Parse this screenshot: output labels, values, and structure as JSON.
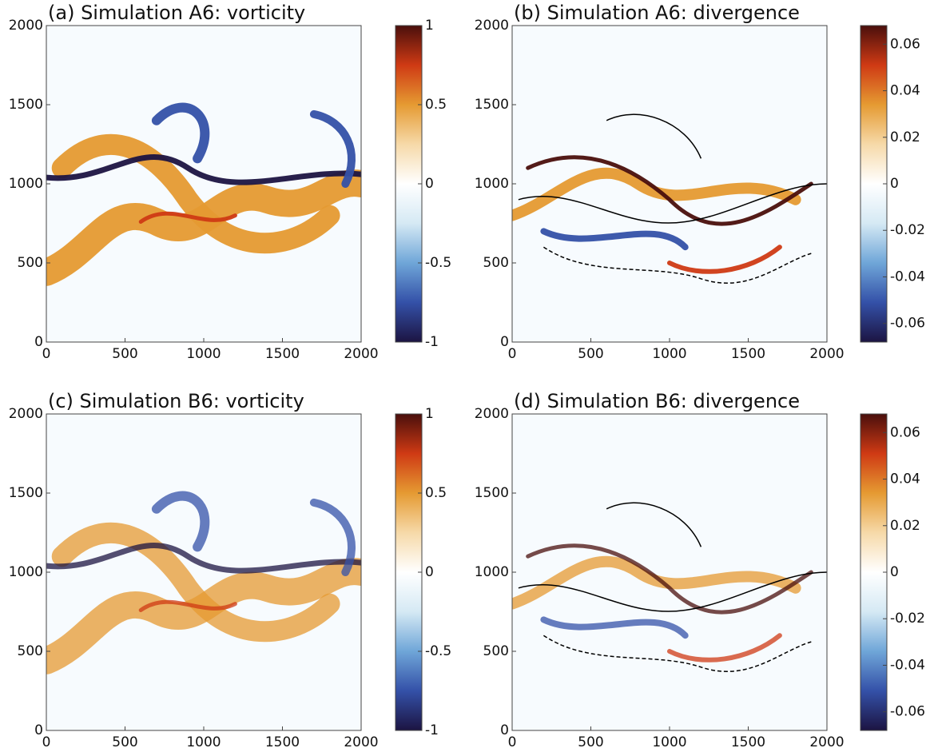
{
  "chart_data": [
    {
      "type": "heatmap",
      "title": "(a) Simulation A6: vorticity",
      "xlim": [
        0,
        2000
      ],
      "ylim": [
        0,
        2000
      ],
      "xticks": [
        0,
        500,
        1000,
        1500,
        2000
      ],
      "yticks": [
        0,
        500,
        1000,
        1500,
        2000
      ],
      "clim": [
        -1,
        1
      ],
      "cticks": [
        -1,
        -0.5,
        0,
        0.5,
        1
      ],
      "colormap": [
        "#1c1442",
        "#3451a8",
        "#6fa6d8",
        "#d5e9f4",
        "#ffffff",
        "#f6d9a8",
        "#e59a32",
        "#cf3a14",
        "#4a0f0c"
      ],
      "contours": false
    },
    {
      "type": "heatmap",
      "title": "(b) Simulation A6: divergence",
      "xlim": [
        0,
        2000
      ],
      "ylim": [
        0,
        2000
      ],
      "xticks": [
        0,
        500,
        1000,
        1500,
        2000
      ],
      "yticks": [
        0,
        500,
        1000,
        1500,
        2000
      ],
      "clim": [
        -0.068,
        0.068
      ],
      "cticks": [
        -0.06,
        -0.04,
        -0.02,
        0,
        0.02,
        0.04,
        0.06
      ],
      "colormap": [
        "#1c1442",
        "#3451a8",
        "#6fa6d8",
        "#d5e9f4",
        "#ffffff",
        "#f6d9a8",
        "#e59a32",
        "#cf3a14",
        "#4a0f0c"
      ],
      "contours": true
    },
    {
      "type": "heatmap",
      "title": "(c) Simulation B6: vorticity",
      "xlim": [
        0,
        2000
      ],
      "ylim": [
        0,
        2000
      ],
      "xticks": [
        0,
        500,
        1000,
        1500,
        2000
      ],
      "yticks": [
        0,
        500,
        1000,
        1500,
        2000
      ],
      "clim": [
        -1,
        1
      ],
      "cticks": [
        -1,
        -0.5,
        0,
        0.5,
        1
      ],
      "colormap": [
        "#1c1442",
        "#3451a8",
        "#6fa6d8",
        "#d5e9f4",
        "#ffffff",
        "#f6d9a8",
        "#e59a32",
        "#cf3a14",
        "#4a0f0c"
      ],
      "contours": false
    },
    {
      "type": "heatmap",
      "title": "(d) Simulation B6: divergence",
      "xlim": [
        0,
        2000
      ],
      "ylim": [
        0,
        2000
      ],
      "xticks": [
        0,
        500,
        1000,
        1500,
        2000
      ],
      "yticks": [
        0,
        500,
        1000,
        1500,
        2000
      ],
      "clim": [
        -0.068,
        0.068
      ],
      "cticks": [
        -0.06,
        -0.04,
        -0.02,
        0,
        0.02,
        0.04,
        0.06
      ],
      "colormap": [
        "#1c1442",
        "#3451a8",
        "#6fa6d8",
        "#d5e9f4",
        "#ffffff",
        "#f6d9a8",
        "#e59a32",
        "#cf3a14",
        "#4a0f0c"
      ],
      "contours": true
    }
  ]
}
